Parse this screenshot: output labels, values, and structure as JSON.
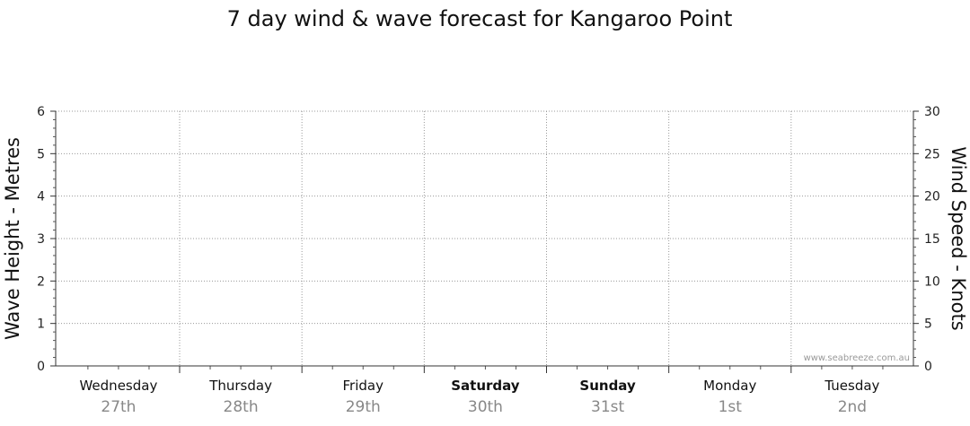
{
  "chart_data": {
    "type": "line",
    "title": "7 day wind & wave forecast for Kangaroo Point",
    "ylabel_left": "Wave Height - Metres",
    "ylabel_right": "Wind Speed - Knots",
    "ylim_left": [
      0,
      6
    ],
    "ylim_right": [
      0,
      30
    ],
    "yticks_left": [
      "0",
      "1",
      "2",
      "3",
      "4",
      "5",
      "6"
    ],
    "yticks_right": [
      "0",
      "5",
      "10",
      "15",
      "20",
      "25",
      "30"
    ],
    "days": [
      {
        "name": "Wednesday",
        "date": "27th",
        "bold": false
      },
      {
        "name": "Thursday",
        "date": "28th",
        "bold": false
      },
      {
        "name": "Friday",
        "date": "29th",
        "bold": false
      },
      {
        "name": "Saturday",
        "date": "30th",
        "bold": true
      },
      {
        "name": "Sunday",
        "date": "31st",
        "bold": true
      },
      {
        "name": "Monday",
        "date": "1st",
        "bold": false
      },
      {
        "name": "Tuesday",
        "date": "2nd",
        "bold": false
      }
    ],
    "series": [],
    "grid": true,
    "credit": "www.seabreeze.com.au"
  }
}
